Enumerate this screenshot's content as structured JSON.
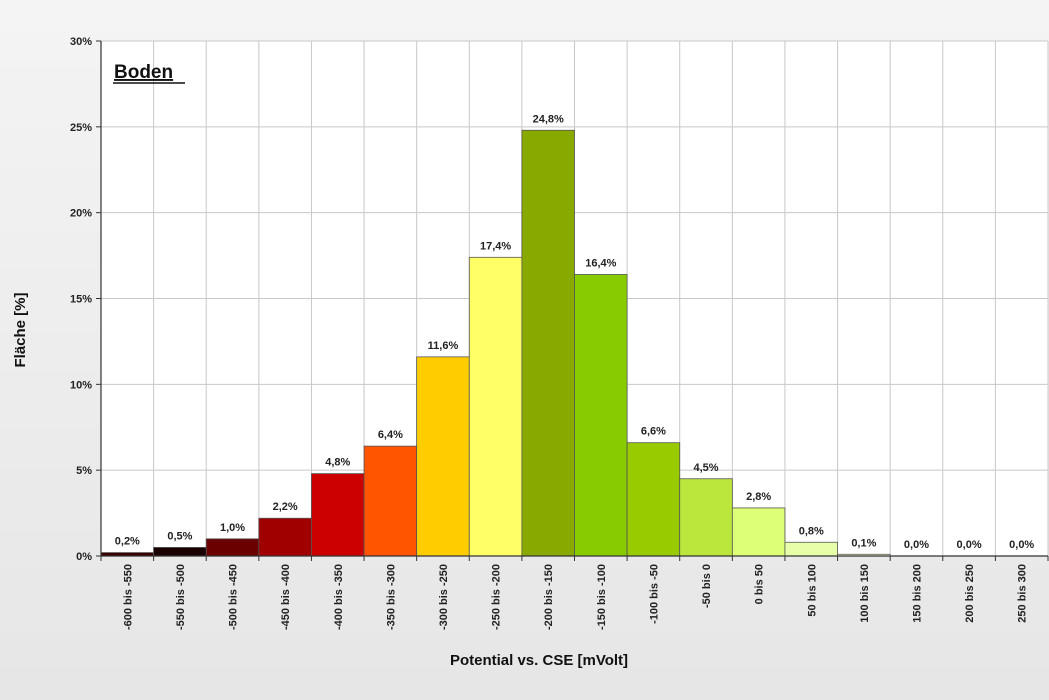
{
  "chart_data": {
    "type": "bar",
    "title": "Boden",
    "xlabel": "Potential vs. CSE  [mVolt]",
    "ylabel": "Fläche  [%]",
    "ylim": [
      0,
      30
    ],
    "yticks": [
      0,
      5,
      10,
      15,
      20,
      25,
      30
    ],
    "ytick_labels": [
      "0%",
      "5%",
      "10%",
      "15%",
      "20%",
      "25%",
      "30%"
    ],
    "grid": true,
    "categories": [
      "-600 bis -550",
      "-550 bis -500",
      "-500 bis -450",
      "-450 bis -400",
      "-400 bis -350",
      "-350 bis -300",
      "-300 bis -250",
      "-250 bis -200",
      "-200 bis -150",
      "-150 bis -100",
      "-100 bis -50",
      "-50 bis 0",
      "0 bis 50",
      "50 bis 100",
      "100 bis 150",
      "150 bis 200",
      "200 bis 250",
      "250 bis 300"
    ],
    "values": [
      0.2,
      0.5,
      1.0,
      2.2,
      4.8,
      6.4,
      11.6,
      17.4,
      24.8,
      16.4,
      6.6,
      4.5,
      2.8,
      0.8,
      0.1,
      0.0,
      0.0,
      0.0
    ],
    "value_labels": [
      "0,2%",
      "0,5%",
      "1,0%",
      "2,2%",
      "4,8%",
      "6,4%",
      "11,6%",
      "17,4%",
      "24,8%",
      "16,4%",
      "6,6%",
      "4,5%",
      "2,8%",
      "0,8%",
      "0,1%",
      "0,0%",
      "0,0%",
      "0,0%"
    ],
    "colors": [
      "#3a0000",
      "#1a0000",
      "#6a0000",
      "#a00000",
      "#cc0000",
      "#ff5500",
      "#ffcc00",
      "#ffff66",
      "#88aa00",
      "#88cc00",
      "#99cc00",
      "#bbe63b",
      "#ddff77",
      "#e8ffaa",
      "#f0ffd0",
      "#f0ffd0",
      "#f0ffd0",
      "#f0ffd0"
    ]
  }
}
